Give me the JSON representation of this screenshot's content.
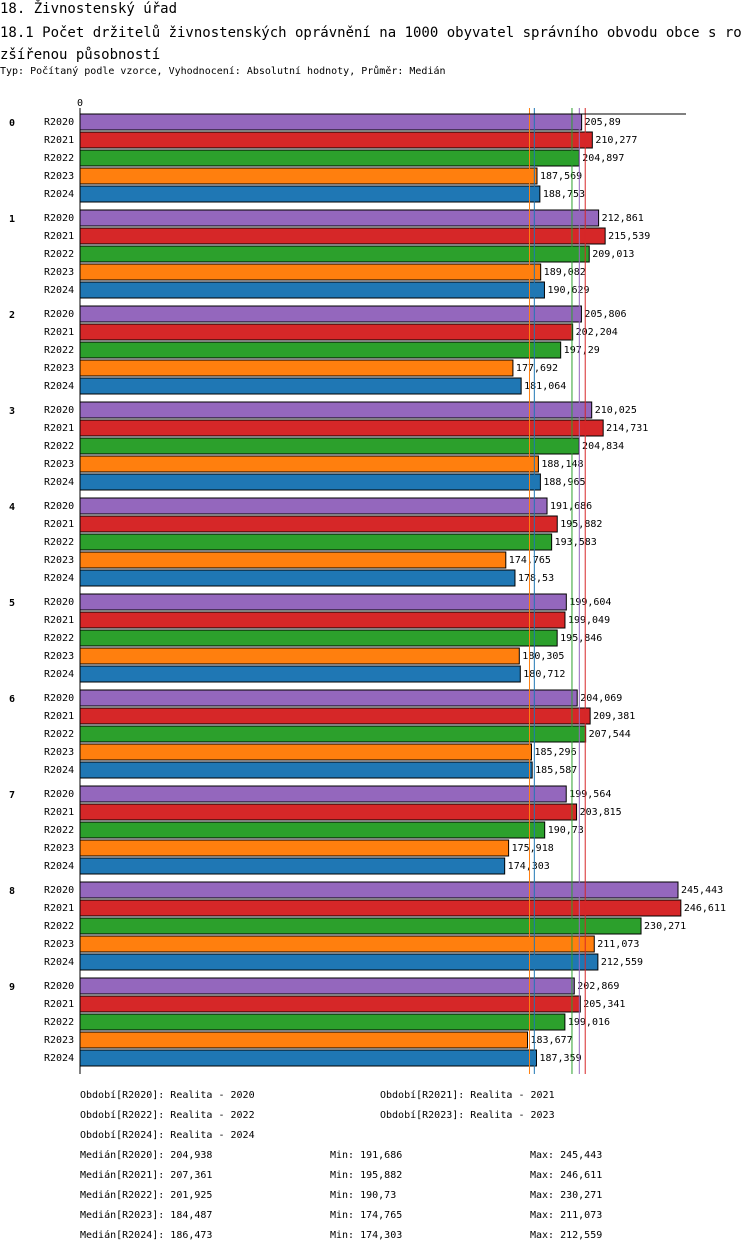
{
  "header": {
    "title": "18. Živnostenský úřad",
    "subtitle": "18.1 Počet držitelů živnostenských oprávnění na 1000 obyvatel správního obvodu obce s rozšířenou působností",
    "type_line": "Typ: Počítaný podle vzorce, Vyhodnocení: Absolutní hodnoty, Průměr: Medián"
  },
  "chart_data": {
    "type": "bar",
    "orientation": "horizontal",
    "axis_zero_label": "0",
    "xlim": [
      0,
      250
    ],
    "categories": [
      "0",
      "1",
      "2",
      "3",
      "4",
      "5",
      "6",
      "7",
      "8",
      "9"
    ],
    "series": [
      {
        "name": "R2020",
        "color": "#9467bd",
        "values": [
          205.89,
          212.861,
          205.806,
          210.025,
          191.686,
          199.604,
          204.069,
          199.564,
          245.443,
          202.869
        ],
        "labels": [
          "205,89",
          "212,861",
          "205,806",
          "210,025",
          "191,686",
          "199,604",
          "204,069",
          "199,564",
          "245,443",
          "202,869"
        ]
      },
      {
        "name": "R2021",
        "color": "#d62728",
        "values": [
          210.277,
          215.539,
          202.204,
          214.731,
          195.882,
          199.049,
          209.381,
          203.815,
          246.611,
          205.341
        ],
        "labels": [
          "210,277",
          "215,539",
          "202,204",
          "214,731",
          "195,882",
          "199,049",
          "209,381",
          "203,815",
          "246,611",
          "205,341"
        ]
      },
      {
        "name": "R2022",
        "color": "#2ca02c",
        "values": [
          204.897,
          209.013,
          197.29,
          204.834,
          193.583,
          195.846,
          207.544,
          190.73,
          230.271,
          199.016
        ],
        "labels": [
          "204,897",
          "209,013",
          "197,29",
          "204,834",
          "193,583",
          "195,846",
          "207,544",
          "190,73",
          "230,271",
          "199,016"
        ]
      },
      {
        "name": "R2023",
        "color": "#ff7f0e",
        "values": [
          187.569,
          189.082,
          177.692,
          188.148,
          174.765,
          180.305,
          185.296,
          175.918,
          211.073,
          183.677
        ],
        "labels": [
          "187,569",
          "189,082",
          "177,692",
          "188,148",
          "174,765",
          "180,305",
          "185,296",
          "175,918",
          "211,073",
          "183,677"
        ]
      },
      {
        "name": "R2024",
        "color": "#1f77b4",
        "values": [
          188.753,
          190.629,
          181.064,
          188.965,
          178.53,
          180.712,
          185.587,
          174.303,
          212.559,
          187.359
        ],
        "labels": [
          "188,753",
          "190,629",
          "181,064",
          "188,965",
          "178,53",
          "180,712",
          "185,587",
          "174,303",
          "212,559",
          "187,359"
        ]
      }
    ],
    "medians": {
      "R2020": 204.938,
      "R2021": 207.361,
      "R2022": 201.925,
      "R2023": 184.487,
      "R2024": 186.473
    }
  },
  "legend": {
    "periods": [
      "Období[R2020]: Realita - 2020",
      "Období[R2021]: Realita - 2021",
      "Období[R2022]: Realita - 2022",
      "Období[R2023]: Realita - 2023",
      "Období[R2024]: Realita - 2024"
    ],
    "stats": [
      {
        "median": "Medián[R2020]: 204,938",
        "min": "Min: 191,686",
        "max": "Max: 245,443"
      },
      {
        "median": "Medián[R2021]: 207,361",
        "min": "Min: 195,882",
        "max": "Max: 246,611"
      },
      {
        "median": "Medián[R2022]: 201,925",
        "min": "Min: 190,73",
        "max": "Max: 230,271"
      },
      {
        "median": "Medián[R2023]: 184,487",
        "min": "Min: 174,765",
        "max": "Max: 211,073"
      },
      {
        "median": "Medián[R2024]: 186,473",
        "min": "Min: 174,303",
        "max": "Max: 212,559"
      }
    ]
  }
}
